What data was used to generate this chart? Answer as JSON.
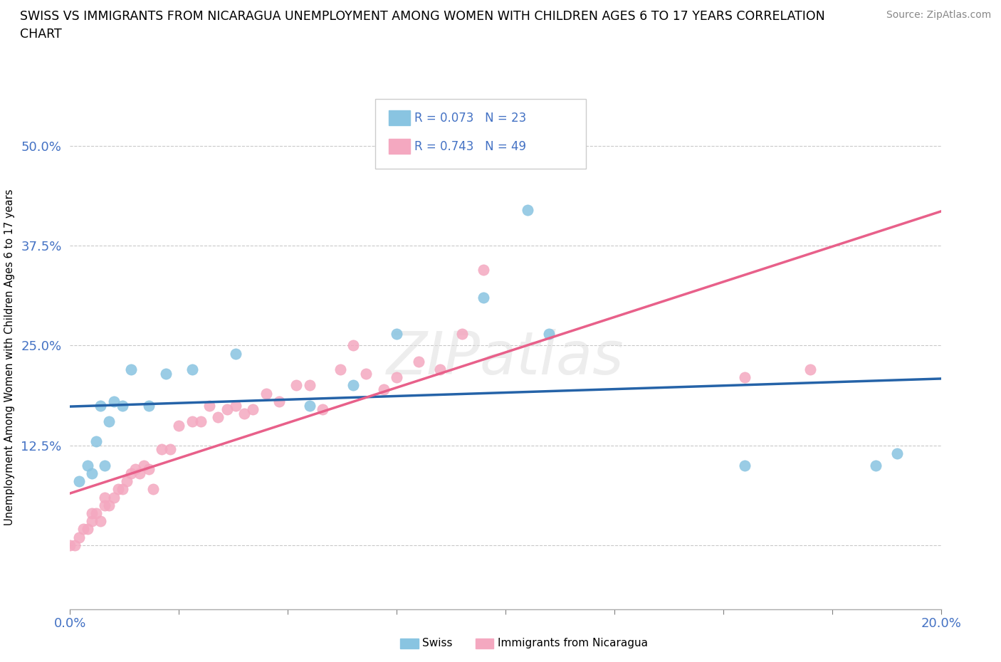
{
  "title_line1": "SWISS VS IMMIGRANTS FROM NICARAGUA UNEMPLOYMENT AMONG WOMEN WITH CHILDREN AGES 6 TO 17 YEARS CORRELATION",
  "title_line2": "CHART",
  "source_text": "Source: ZipAtlas.com",
  "ylabel": "Unemployment Among Women with Children Ages 6 to 17 years",
  "xlim": [
    0.0,
    0.2
  ],
  "ylim": [
    -0.08,
    0.55
  ],
  "xticks": [
    0.0,
    0.025,
    0.05,
    0.075,
    0.1,
    0.125,
    0.15,
    0.175,
    0.2
  ],
  "xticklabels": [
    "0.0%",
    "",
    "",
    "",
    "",
    "",
    "",
    "",
    "20.0%"
  ],
  "yticks": [
    0.0,
    0.125,
    0.25,
    0.375,
    0.5
  ],
  "yticklabels": [
    "",
    "12.5%",
    "25.0%",
    "37.5%",
    "50.0%"
  ],
  "swiss_color": "#89c4e1",
  "nicaragua_color": "#f4a8c0",
  "swiss_line_color": "#2563a8",
  "nicaragua_line_color": "#e8608a",
  "R_swiss": 0.073,
  "N_swiss": 23,
  "R_nicaragua": 0.743,
  "N_nicaragua": 49,
  "background_color": "#ffffff",
  "grid_color": "#bbbbbb",
  "watermark": "ZIPatlas",
  "tick_color": "#4472c4",
  "swiss_x": [
    0.002,
    0.004,
    0.005,
    0.006,
    0.007,
    0.008,
    0.009,
    0.01,
    0.012,
    0.014,
    0.018,
    0.022,
    0.028,
    0.038,
    0.055,
    0.065,
    0.075,
    0.095,
    0.105,
    0.11,
    0.155,
    0.185,
    0.19
  ],
  "swiss_y": [
    0.08,
    0.1,
    0.09,
    0.13,
    0.175,
    0.1,
    0.155,
    0.18,
    0.175,
    0.22,
    0.175,
    0.215,
    0.22,
    0.24,
    0.175,
    0.2,
    0.265,
    0.31,
    0.42,
    0.265,
    0.1,
    0.1,
    0.115
  ],
  "nicaragua_x": [
    0.0,
    0.001,
    0.002,
    0.003,
    0.004,
    0.005,
    0.005,
    0.006,
    0.007,
    0.008,
    0.008,
    0.009,
    0.01,
    0.011,
    0.012,
    0.013,
    0.014,
    0.015,
    0.016,
    0.017,
    0.018,
    0.019,
    0.021,
    0.023,
    0.025,
    0.028,
    0.03,
    0.032,
    0.034,
    0.036,
    0.038,
    0.04,
    0.042,
    0.045,
    0.048,
    0.052,
    0.055,
    0.058,
    0.062,
    0.065,
    0.068,
    0.072,
    0.075,
    0.08,
    0.085,
    0.09,
    0.095,
    0.155,
    0.17
  ],
  "nicaragua_y": [
    0.0,
    0.0,
    0.01,
    0.02,
    0.02,
    0.03,
    0.04,
    0.04,
    0.03,
    0.05,
    0.06,
    0.05,
    0.06,
    0.07,
    0.07,
    0.08,
    0.09,
    0.095,
    0.09,
    0.1,
    0.095,
    0.07,
    0.12,
    0.12,
    0.15,
    0.155,
    0.155,
    0.175,
    0.16,
    0.17,
    0.175,
    0.165,
    0.17,
    0.19,
    0.18,
    0.2,
    0.2,
    0.17,
    0.22,
    0.25,
    0.215,
    0.195,
    0.21,
    0.23,
    0.22,
    0.265,
    0.345,
    0.21,
    0.22
  ]
}
